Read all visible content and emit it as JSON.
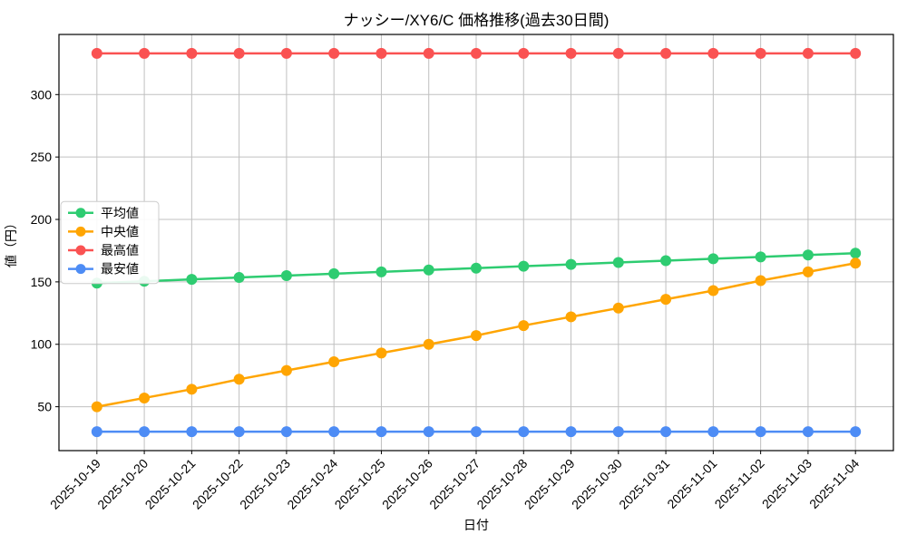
{
  "chart_data": {
    "type": "line",
    "title": "ナッシー/XY6/C 価格推移(過去30日間)",
    "xlabel": "日付",
    "ylabel": "値（円）",
    "categories": [
      "2025-10-19",
      "2025-10-20",
      "2025-10-21",
      "2025-10-22",
      "2025-10-23",
      "2025-10-24",
      "2025-10-25",
      "2025-10-26",
      "2025-10-27",
      "2025-10-28",
      "2025-10-29",
      "2025-10-30",
      "2025-10-31",
      "2025-11-01",
      "2025-11-02",
      "2025-11-03",
      "2025-11-04"
    ],
    "series": [
      {
        "key": "average",
        "name": "平均値",
        "color": "#2ecc71",
        "values": [
          149,
          150.5,
          152,
          153.5,
          155,
          156.5,
          158,
          159.5,
          161,
          162.5,
          164,
          165.5,
          167,
          168.5,
          170,
          171.5,
          173
        ]
      },
      {
        "key": "median",
        "name": "中央値",
        "color": "#ffa502",
        "values": [
          50,
          57,
          64,
          72,
          79,
          86,
          93,
          100,
          107,
          115,
          122,
          129,
          136,
          143,
          151,
          158,
          165
        ]
      },
      {
        "key": "max",
        "name": "最高値",
        "color": "#fa5252",
        "values": [
          333,
          333,
          333,
          333,
          333,
          333,
          333,
          333,
          333,
          333,
          333,
          333,
          333,
          333,
          333,
          333,
          333
        ]
      },
      {
        "key": "min",
        "name": "最安値",
        "color": "#4d8cf5",
        "values": [
          30,
          30,
          30,
          30,
          30,
          30,
          30,
          30,
          30,
          30,
          30,
          30,
          30,
          30,
          30,
          30,
          30
        ]
      }
    ],
    "ylim": [
      14.85,
      348.15
    ],
    "yticks": [
      50,
      100,
      150,
      200,
      250,
      300
    ],
    "x_tick_rotation": 45,
    "grid": true,
    "legend_position": "center-left"
  },
  "colors": {
    "background": "#ffffff",
    "grid": "#c0c0c0",
    "axis": "#000000",
    "legend_border": "#cccccc",
    "legend_background": "rgba(255,255,255,0.9)"
  }
}
